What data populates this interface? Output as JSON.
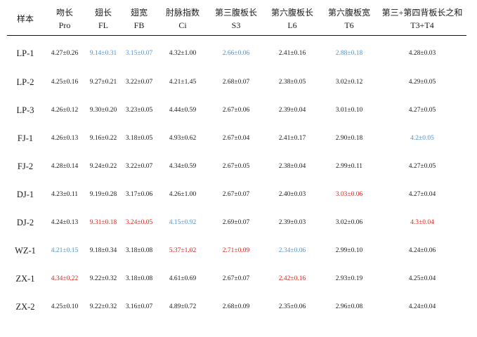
{
  "colors": {
    "blue": "#4f92d0",
    "red": "#e8201a",
    "dark": "#1a1a1a"
  },
  "headers": [
    {
      "cn": "样本",
      "en": ""
    },
    {
      "cn": "吻长",
      "en": "Pro"
    },
    {
      "cn": "翅长",
      "en": "FL"
    },
    {
      "cn": "翅宽",
      "en": "FB"
    },
    {
      "cn": "肘脉指数",
      "en": "Ci"
    },
    {
      "cn": "第三腹板长",
      "en": "S3"
    },
    {
      "cn": "第六腹板长",
      "en": "L6"
    },
    {
      "cn": "第六腹板宽",
      "en": "T6"
    },
    {
      "cn": "第三+第四背板长之和",
      "en": "T3+T4"
    }
  ],
  "rows": [
    {
      "sample": "LP-1",
      "cells": [
        {
          "v": "4.27±0.26",
          "c": "dark"
        },
        {
          "v": "9.14±0.31",
          "c": "blue"
        },
        {
          "v": "3.15±0.07",
          "c": "blue"
        },
        {
          "v": "4.32±1.00",
          "c": "dark"
        },
        {
          "v": "2.66±0.06",
          "c": "blue"
        },
        {
          "v": "2.41±0.16",
          "c": "dark"
        },
        {
          "v": "2.88±0.18",
          "c": "blue"
        },
        {
          "v": "4.28±0.03",
          "c": "dark"
        }
      ]
    },
    {
      "sample": "LP-2",
      "cells": [
        {
          "v": "4.25±0.16",
          "c": "dark"
        },
        {
          "v": "9.27±0.21",
          "c": "dark"
        },
        {
          "v": "3.22±0.07",
          "c": "dark"
        },
        {
          "v": "4.21±1.45",
          "c": "dark"
        },
        {
          "v": "2.68±0.07",
          "c": "dark"
        },
        {
          "v": "2.38±0.05",
          "c": "dark"
        },
        {
          "v": "3.02±0.12",
          "c": "dark"
        },
        {
          "v": "4.29±0.05",
          "c": "dark"
        }
      ]
    },
    {
      "sample": "LP-3",
      "cells": [
        {
          "v": "4.26±0.12",
          "c": "dark"
        },
        {
          "v": "9.30±0.20",
          "c": "dark"
        },
        {
          "v": "3.23±0.05",
          "c": "dark"
        },
        {
          "v": "4.44±0.59",
          "c": "dark"
        },
        {
          "v": "2.67±0.06",
          "c": "dark"
        },
        {
          "v": "2.39±0.04",
          "c": "dark"
        },
        {
          "v": "3.01±0.10",
          "c": "dark"
        },
        {
          "v": "4.27±0.05",
          "c": "dark"
        }
      ]
    },
    {
      "sample": "FJ-1",
      "cells": [
        {
          "v": "4.26±0.13",
          "c": "dark"
        },
        {
          "v": "9.16±0.22",
          "c": "dark"
        },
        {
          "v": "3.18±0.05",
          "c": "dark"
        },
        {
          "v": "4.93±0.62",
          "c": "dark"
        },
        {
          "v": "2.67±0.04",
          "c": "dark"
        },
        {
          "v": "2.41±0.17",
          "c": "dark"
        },
        {
          "v": "2.90±0.18",
          "c": "dark"
        },
        {
          "v": "4.2±0.05",
          "c": "blue"
        }
      ]
    },
    {
      "sample": "FJ-2",
      "cells": [
        {
          "v": "4.28±0.14",
          "c": "dark"
        },
        {
          "v": "9.24±0.22",
          "c": "dark"
        },
        {
          "v": "3.22±0.07",
          "c": "dark"
        },
        {
          "v": "4.34±0.59",
          "c": "dark"
        },
        {
          "v": "2.67±0.05",
          "c": "dark"
        },
        {
          "v": "2.38±0.04",
          "c": "dark"
        },
        {
          "v": "2.99±0.11",
          "c": "dark"
        },
        {
          "v": "4.27±0.05",
          "c": "dark"
        }
      ]
    },
    {
      "sample": "DJ-1",
      "cells": [
        {
          "v": "4.23±0.11",
          "c": "dark"
        },
        {
          "v": "9.19±0.28",
          "c": "dark"
        },
        {
          "v": "3.17±0.06",
          "c": "dark"
        },
        {
          "v": "4.26±1.00",
          "c": "dark"
        },
        {
          "v": "2.67±0.07",
          "c": "dark"
        },
        {
          "v": "2.40±0.03",
          "c": "dark"
        },
        {
          "v": "3.03±0.06",
          "c": "red"
        },
        {
          "v": "4.27±0.04",
          "c": "dark"
        }
      ]
    },
    {
      "sample": "DJ-2",
      "cells": [
        {
          "v": "4.24±0.13",
          "c": "dark"
        },
        {
          "v": "9.31±0.18",
          "c": "red"
        },
        {
          "v": "3.24±0.05",
          "c": "red"
        },
        {
          "v": "4.15±0.92",
          "c": "blue"
        },
        {
          "v": "2.69±0.07",
          "c": "dark"
        },
        {
          "v": "2.39±0.03",
          "c": "dark"
        },
        {
          "v": "3.02±0.06",
          "c": "dark"
        },
        {
          "v": "4.3±0.04",
          "c": "red"
        }
      ]
    },
    {
      "sample": "WZ-1",
      "cells": [
        {
          "v": "4.21±0.15",
          "c": "blue"
        },
        {
          "v": "9.18±0.34",
          "c": "dark"
        },
        {
          "v": "3.18±0.08",
          "c": "dark"
        },
        {
          "v": "5.37±1.02",
          "c": "red"
        },
        {
          "v": "2.71±0.09",
          "c": "red"
        },
        {
          "v": "2.34±0.06",
          "c": "blue"
        },
        {
          "v": "2.99±0.10",
          "c": "dark"
        },
        {
          "v": "4.24±0.06",
          "c": "dark"
        }
      ]
    },
    {
      "sample": "ZX-1",
      "cells": [
        {
          "v": "4.34±0.22",
          "c": "red"
        },
        {
          "v": "9.22±0.32",
          "c": "dark"
        },
        {
          "v": "3.18±0.08",
          "c": "dark"
        },
        {
          "v": "4.61±0.69",
          "c": "dark"
        },
        {
          "v": "2.67±0.07",
          "c": "dark"
        },
        {
          "v": "2.42±0.16",
          "c": "red"
        },
        {
          "v": "2.93±0.19",
          "c": "dark"
        },
        {
          "v": "4.25±0.04",
          "c": "dark"
        }
      ]
    },
    {
      "sample": "ZX-2",
      "cells": [
        {
          "v": "4.25±0.10",
          "c": "dark"
        },
        {
          "v": "9.22±0.32",
          "c": "dark"
        },
        {
          "v": "3.16±0.07",
          "c": "dark"
        },
        {
          "v": "4.89±0.72",
          "c": "dark"
        },
        {
          "v": "2.68±0.09",
          "c": "dark"
        },
        {
          "v": "2.35±0.06",
          "c": "dark"
        },
        {
          "v": "2.96±0.08",
          "c": "dark"
        },
        {
          "v": "4.24±0.04",
          "c": "dark"
        }
      ]
    }
  ]
}
